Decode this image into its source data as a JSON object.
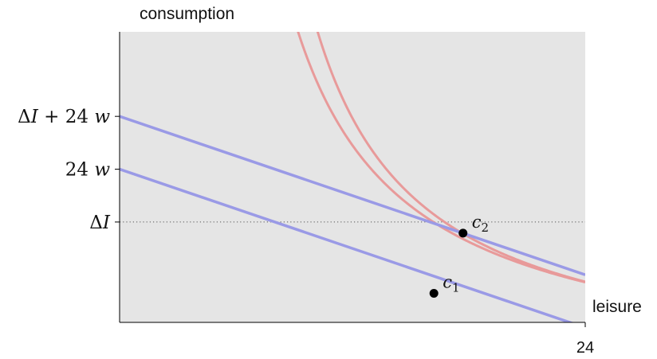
{
  "chart_data": {
    "type": "line",
    "title": "",
    "xlabel": "leisure",
    "ylabel": "consumption",
    "xlim": [
      0,
      24
    ],
    "x_ticks": [
      {
        "value": 24,
        "label": "24"
      }
    ],
    "ylim": [
      -0.9,
      4.6
    ],
    "y_ticks": [
      {
        "value": 1,
        "label_main": "Δ",
        "label_var": "I",
        "label_rest": ""
      },
      {
        "value": 2,
        "label_main": "24 ",
        "label_var": "w",
        "label_rest": ""
      },
      {
        "value": 3,
        "label_main": "Δ",
        "label_var": "I",
        "label_rest": " + 24 w"
      }
    ],
    "grid": false,
    "colors": {
      "plot_background": "#e5e5e5",
      "budget_line": "#9a9ae6",
      "indifference_curve": "#e89a9a",
      "point": "#000000",
      "reference_line": "#555555"
    },
    "budget_lines": [
      {
        "x": [
          0,
          24
        ],
        "y": [
          2,
          -1
        ]
      },
      {
        "x": [
          0,
          24
        ],
        "y": [
          3,
          0
        ]
      }
    ],
    "indifference_curves": [
      {
        "k": 35.96,
        "x0": 4.76,
        "x": [
          7.0,
          8.0,
          9.0,
          10.0,
          12.0,
          14.0,
          16.2,
          18.0,
          20.0,
          22.0,
          24.0
        ]
      },
      {
        "k": 38.34,
        "x0": 3.39,
        "x": [
          7.0,
          8.0,
          9.0,
          10.0,
          12.0,
          14.0,
          17.7,
          20.0,
          22.0,
          24.0
        ]
      }
    ],
    "points": [
      {
        "label_main": "c",
        "label_sub": "1",
        "x": 16.2,
        "y": -0.35
      },
      {
        "label_main": "c",
        "label_sub": "2",
        "x": 17.7,
        "y": 0.79
      }
    ],
    "reference_line": {
      "y": 1,
      "style": "dotted"
    }
  }
}
